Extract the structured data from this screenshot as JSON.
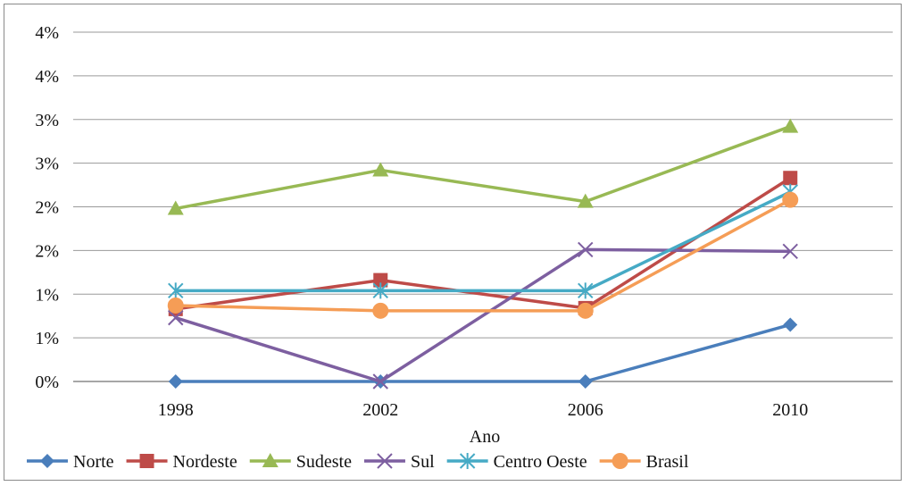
{
  "chart_data": {
    "type": "line",
    "title": "",
    "xlabel": "Ano",
    "ylabel": "",
    "categories": [
      "1998",
      "2002",
      "2006",
      "2010"
    ],
    "ylim": [
      0,
      4
    ],
    "yticks": [
      0,
      0.5,
      1.0,
      1.5,
      2.0,
      2.5,
      3.0,
      3.5
    ],
    "ytick_labels": [
      "0%",
      "1%",
      "1%",
      "2%",
      "2%",
      "3%",
      "3%",
      "4%"
    ],
    "grid": "horizontal",
    "legend_position": "bottom",
    "series": [
      {
        "name": "Norte",
        "color": "#4A7EBB",
        "marker": "diamond",
        "values": [
          0.0,
          0.0,
          0.0,
          0.65
        ]
      },
      {
        "name": "Nordeste",
        "color": "#BE4B48",
        "marker": "square",
        "values": [
          0.83,
          1.16,
          0.84,
          2.33
        ]
      },
      {
        "name": "Sudeste",
        "color": "#98B954",
        "marker": "triangle",
        "values": [
          1.98,
          2.42,
          2.06,
          2.92
        ]
      },
      {
        "name": "Sul",
        "color": "#7D5FA0",
        "marker": "x",
        "values": [
          0.73,
          0.0,
          1.51,
          1.49
        ]
      },
      {
        "name": "Centro Oeste",
        "color": "#46AAC5",
        "marker": "star",
        "values": [
          1.04,
          1.04,
          1.04,
          2.17
        ]
      },
      {
        "name": "Brasil",
        "color": "#F59D56",
        "marker": "circle",
        "values": [
          0.87,
          0.81,
          0.81,
          2.08
        ]
      }
    ]
  }
}
